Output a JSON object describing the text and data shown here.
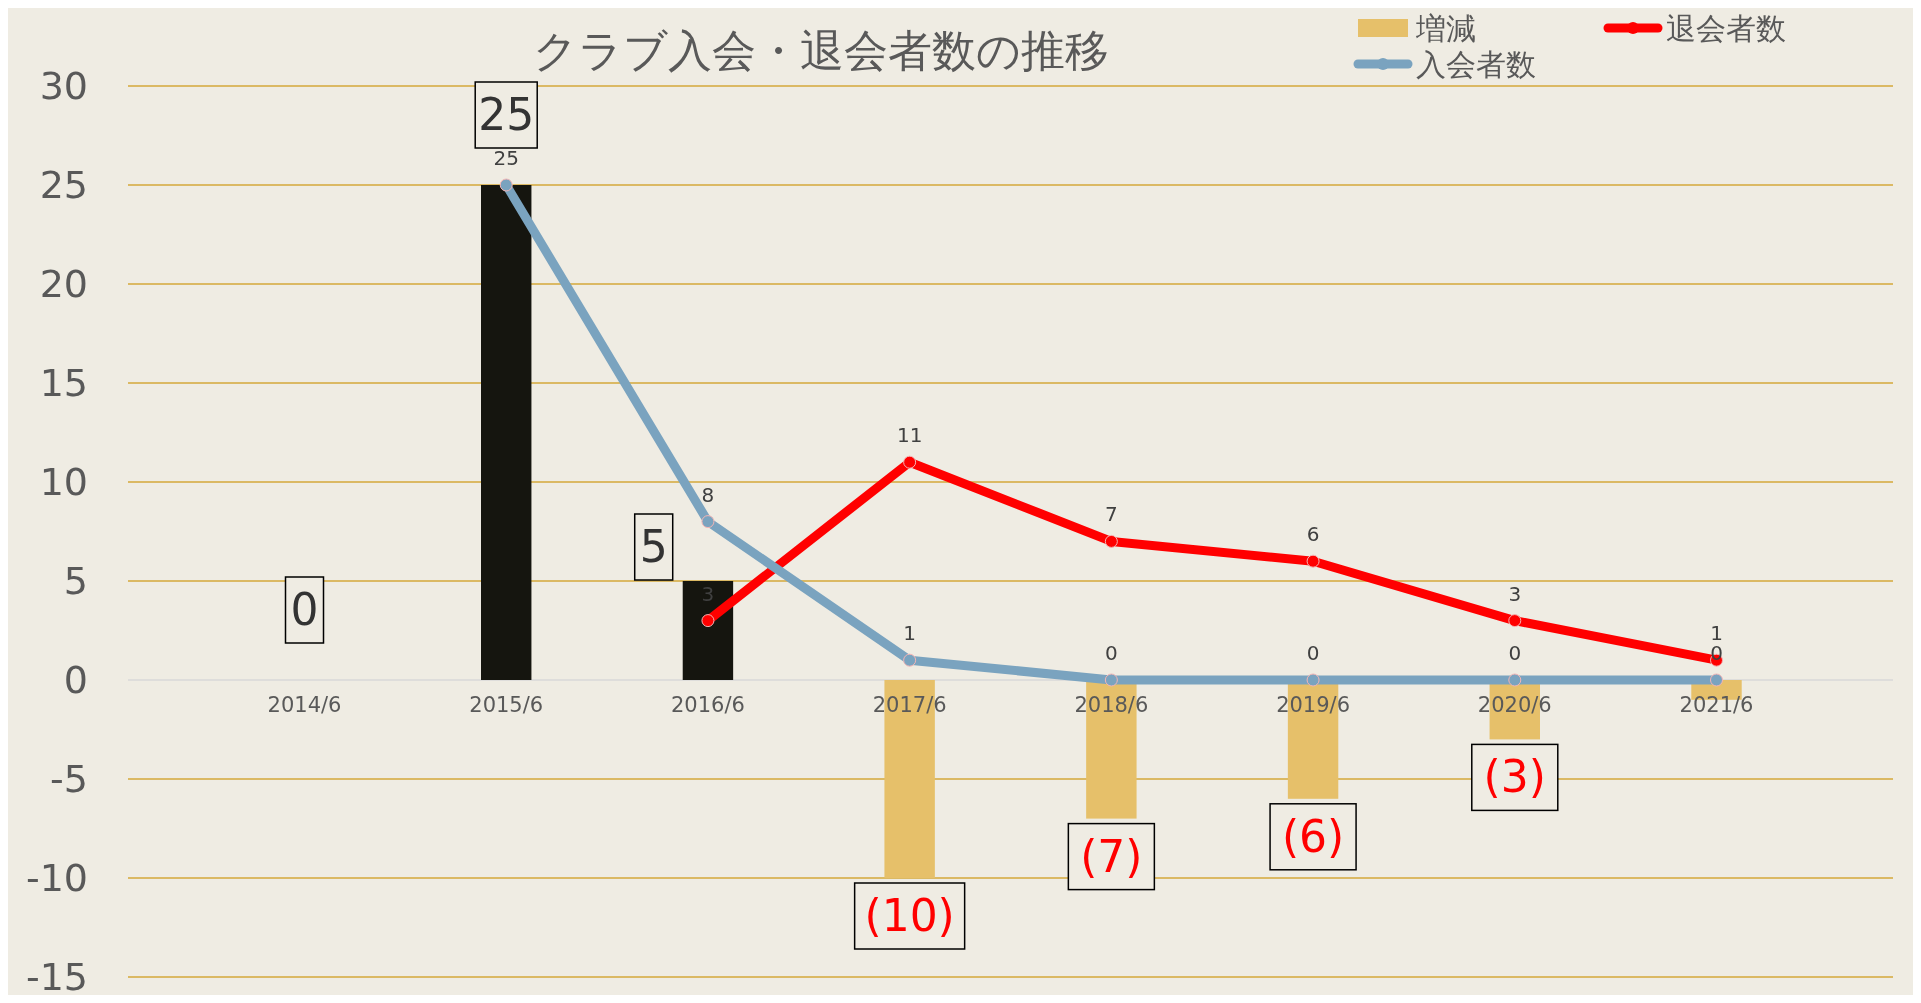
{
  "chart_data": {
    "type": "bar",
    "title": "クラブ入会・退会者数の推移",
    "categories": [
      "2014/6",
      "2015/6",
      "2016/6",
      "2017/6",
      "2018/6",
      "2019/6",
      "2020/6",
      "2021/6"
    ],
    "series": [
      {
        "name": "増減",
        "color": "#e6c06a",
        "colors": [
          "#15150f",
          "#15150f",
          "#15150f",
          "#e6c06a",
          "#e6c06a",
          "#e6c06a",
          "#e6c06a",
          "#e6c06a"
        ],
        "values": [
          0,
          25,
          5,
          -10,
          -7,
          -6,
          -3,
          -1
        ],
        "value_labels": [
          "0",
          "25",
          "5",
          "(10)",
          "(7)",
          "(6)",
          "(3)",
          null
        ]
      },
      {
        "name": "退会者数",
        "type": "line",
        "color": "#ff0000",
        "values": [
          null,
          null,
          3,
          11,
          7,
          6,
          3,
          1
        ],
        "value_labels": [
          null,
          null,
          "3",
          "11",
          "7",
          "6",
          "3",
          "1"
        ]
      },
      {
        "name": "入会者数",
        "type": "line",
        "color": "#7aa3bf",
        "values": [
          null,
          25,
          8,
          1,
          0,
          0,
          0,
          0
        ],
        "value_labels": [
          null,
          "25",
          "8",
          "1",
          "0",
          "0",
          "0",
          "0"
        ]
      }
    ],
    "ylim": [
      -15,
      30
    ],
    "yticks": [
      -15,
      -10,
      -5,
      0,
      5,
      10,
      15,
      20,
      25,
      30
    ],
    "grid": "y",
    "legend": "top right",
    "marker": "circle"
  }
}
